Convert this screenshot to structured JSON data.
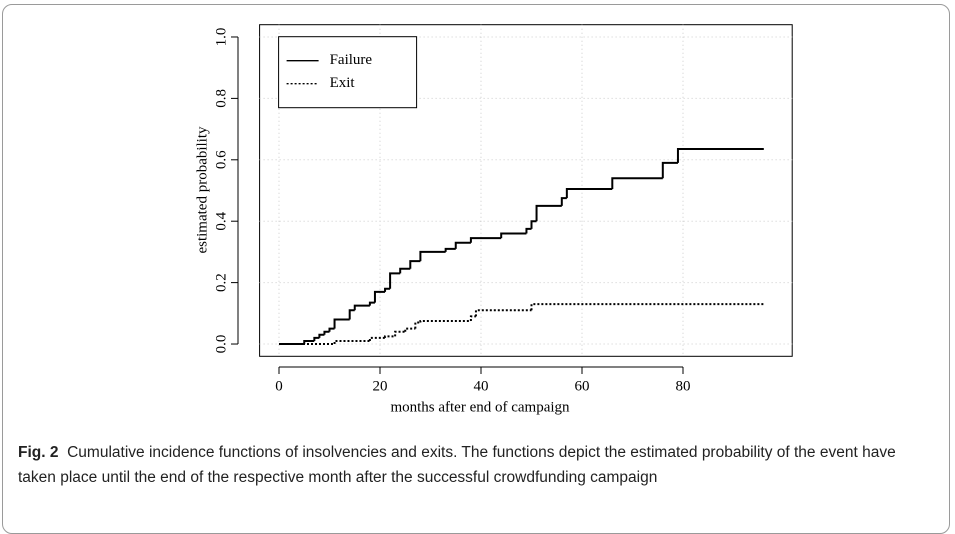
{
  "chart_data": {
    "type": "line",
    "drawstyle": "steps-post",
    "xlabel": "months after end of campaign",
    "ylabel": "estimated probability",
    "xlim": [
      -3.84,
      99.84
    ],
    "ylim": [
      -0.04,
      1.04
    ],
    "xticks": [
      0,
      20,
      40,
      60,
      80
    ],
    "yticks": [
      {
        "value": 0,
        "label": "0.0"
      },
      0.2,
      0.4,
      0.6,
      0.8,
      {
        "value": 1,
        "label": "1.0"
      }
    ],
    "grid": true,
    "legend": "top-left",
    "series": [
      {
        "name": "Failure",
        "color": "#000000",
        "linestyle": "solid",
        "x": [
          0,
          5,
          7,
          8,
          9,
          10,
          11,
          14,
          15,
          18,
          19,
          21,
          22,
          24,
          26,
          28,
          33,
          35,
          38,
          44,
          49,
          50,
          51,
          56,
          57,
          66,
          76,
          79,
          96
        ],
        "values": [
          0,
          0.01,
          0.02,
          0.03,
          0.04,
          0.05,
          0.08,
          0.11,
          0.125,
          0.135,
          0.17,
          0.18,
          0.23,
          0.245,
          0.27,
          0.3,
          0.31,
          0.33,
          0.345,
          0.36,
          0.375,
          0.4,
          0.45,
          0.475,
          0.505,
          0.54,
          0.59,
          0.635,
          0.635
        ]
      },
      {
        "name": "Exit",
        "color": "#000000",
        "linestyle": "dotted",
        "x": [
          0,
          11,
          18,
          21,
          23,
          25,
          27,
          28,
          38,
          39,
          50,
          96
        ],
        "values": [
          0,
          0.01,
          0.02,
          0.025,
          0.04,
          0.05,
          0.07,
          0.075,
          0.09,
          0.11,
          0.13,
          0.13
        ]
      }
    ]
  },
  "caption_label": "Fig. 2",
  "caption": "Cumulative incidence functions of insolvencies and exits. The functions depict the estimated probability of the event have taken place until the end of the respective month after the successful crowdfunding campaign"
}
